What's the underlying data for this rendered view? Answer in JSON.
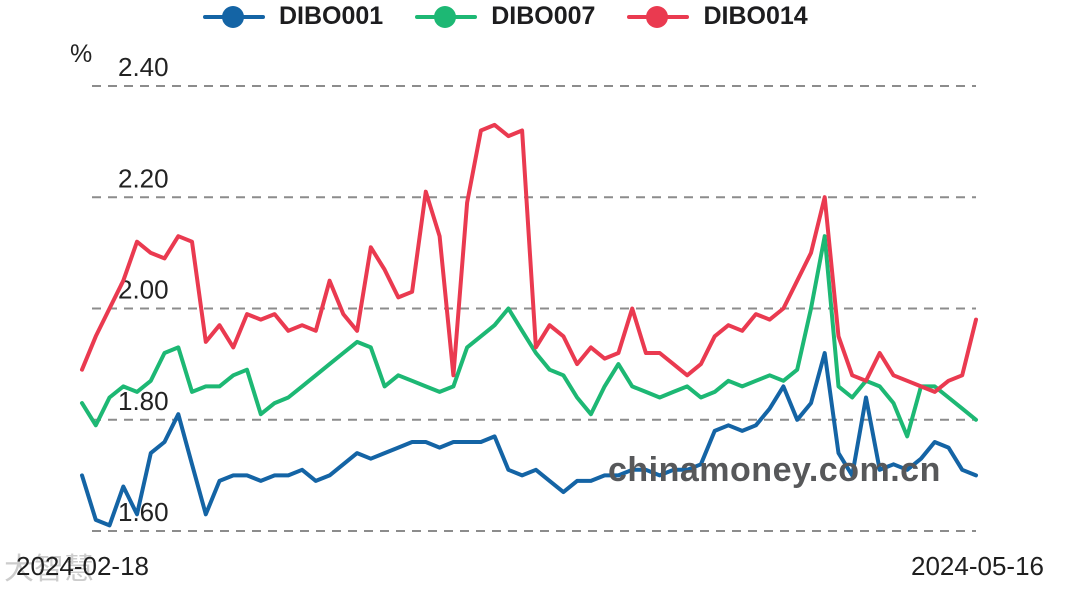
{
  "page": {
    "background": "#ffffff"
  },
  "chart_data": {
    "type": "line",
    "title": "",
    "ylabel": "%",
    "xlabel": "",
    "ylim": [
      1.6,
      2.4
    ],
    "yticks": [
      2.4,
      2.2,
      2.0,
      1.8,
      1.6
    ],
    "ytick_labels": [
      "2.40",
      "2.20",
      "2.00",
      "1.80",
      "1.60"
    ],
    "x_start_label": "2024-02-18",
    "x_end_label": "2024-05-16",
    "grid": "horizontal-dashed",
    "legend_position": "top",
    "watermark": "chinamoney.com.cn",
    "corner_watermark": "大智慧",
    "series": [
      {
        "name": "DIBO001",
        "color": "#1464a5",
        "values": [
          1.7,
          1.62,
          1.61,
          1.68,
          1.63,
          1.74,
          1.76,
          1.81,
          1.72,
          1.63,
          1.69,
          1.7,
          1.7,
          1.69,
          1.7,
          1.7,
          1.71,
          1.69,
          1.7,
          1.72,
          1.74,
          1.73,
          1.74,
          1.75,
          1.76,
          1.76,
          1.75,
          1.76,
          1.76,
          1.76,
          1.77,
          1.71,
          1.7,
          1.71,
          1.69,
          1.67,
          1.69,
          1.69,
          1.7,
          1.7,
          1.71,
          1.71,
          1.7,
          1.71,
          1.71,
          1.72,
          1.78,
          1.79,
          1.78,
          1.79,
          1.82,
          1.86,
          1.8,
          1.83,
          1.92,
          1.74,
          1.7,
          1.84,
          1.71,
          1.72,
          1.71,
          1.73,
          1.76,
          1.75,
          1.71,
          1.7
        ]
      },
      {
        "name": "DIBO007",
        "color": "#1db874",
        "values": [
          1.83,
          1.79,
          1.84,
          1.86,
          1.85,
          1.87,
          1.92,
          1.93,
          1.85,
          1.86,
          1.86,
          1.88,
          1.89,
          1.81,
          1.83,
          1.84,
          1.86,
          1.88,
          1.9,
          1.92,
          1.94,
          1.93,
          1.86,
          1.88,
          1.87,
          1.86,
          1.85,
          1.86,
          1.93,
          1.95,
          1.97,
          2.0,
          1.96,
          1.92,
          1.89,
          1.88,
          1.84,
          1.81,
          1.86,
          1.9,
          1.86,
          1.85,
          1.84,
          1.85,
          1.86,
          1.84,
          1.85,
          1.87,
          1.86,
          1.87,
          1.88,
          1.87,
          1.89,
          2.0,
          2.13,
          1.86,
          1.84,
          1.87,
          1.86,
          1.83,
          1.77,
          1.86,
          1.86,
          1.84,
          1.82,
          1.8
        ]
      },
      {
        "name": "DIBO014",
        "color": "#ea3a50",
        "values": [
          1.89,
          1.95,
          2.0,
          2.05,
          2.12,
          2.1,
          2.09,
          2.13,
          2.12,
          1.94,
          1.97,
          1.93,
          1.99,
          1.98,
          1.99,
          1.96,
          1.97,
          1.96,
          2.05,
          1.99,
          1.96,
          2.11,
          2.07,
          2.02,
          2.03,
          2.21,
          2.13,
          1.88,
          2.19,
          2.32,
          2.33,
          2.31,
          2.32,
          1.93,
          1.97,
          1.95,
          1.9,
          1.93,
          1.91,
          1.92,
          2.0,
          1.92,
          1.92,
          1.9,
          1.88,
          1.9,
          1.95,
          1.97,
          1.96,
          1.99,
          1.98,
          2.0,
          2.05,
          2.1,
          2.2,
          1.95,
          1.88,
          1.87,
          1.92,
          1.88,
          1.87,
          1.86,
          1.85,
          1.87,
          1.88,
          1.98
        ]
      }
    ]
  }
}
